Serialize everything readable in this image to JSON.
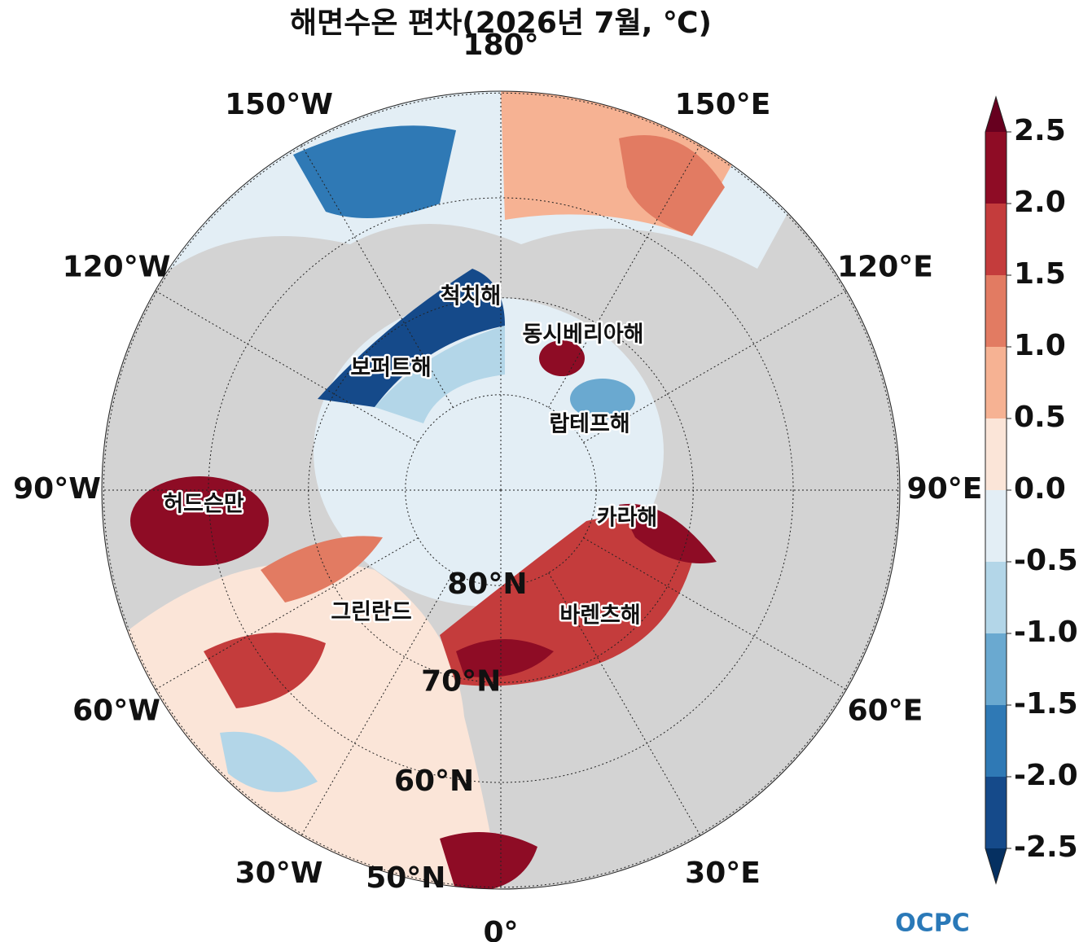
{
  "title": "해면수온 편차(2026년 7월, ℃)",
  "map": {
    "projection": "north-polar-stereographic",
    "lon_labels": [
      {
        "value": 180,
        "label": "180°"
      },
      {
        "value": -150,
        "label": "150°W"
      },
      {
        "value": 150,
        "label": "150°E"
      },
      {
        "value": -120,
        "label": "120°W"
      },
      {
        "value": 120,
        "label": "120°E"
      },
      {
        "value": -90,
        "label": "90°W"
      },
      {
        "value": 90,
        "label": "90°E"
      },
      {
        "value": -60,
        "label": "60°W"
      },
      {
        "value": 60,
        "label": "60°E"
      },
      {
        "value": -30,
        "label": "30°W"
      },
      {
        "value": 30,
        "label": "30°E"
      },
      {
        "value": 0,
        "label": "0°"
      }
    ],
    "lat_labels": [
      {
        "value": 80,
        "label": "80°N"
      },
      {
        "value": 70,
        "label": "70°N"
      },
      {
        "value": 60,
        "label": "60°N"
      },
      {
        "value": 50,
        "label": "50°N"
      }
    ],
    "sea_labels": [
      "척치해",
      "동시베리아해",
      "보퍼트해",
      "랍테프해",
      "허드슨만",
      "카라해",
      "그린란드",
      "바렌츠해"
    ]
  },
  "colorbar": {
    "ticks": [
      -2.5,
      {
        "value": -2,
        "label": "-2.0"
      },
      -1.5,
      {
        "value": -1,
        "label": "-1.0"
      },
      -0.5,
      {
        "value": 0,
        "label": "0.0"
      },
      0.5,
      {
        "value": 1,
        "label": "1.0"
      },
      1.5,
      {
        "value": 2,
        "label": "2.0"
      },
      2.5
    ],
    "colors": [
      "#154a8a",
      "#2f79b5",
      "#6aa9d0",
      "#b3d6e8",
      "#e3eef5",
      "#fbe5d8",
      "#f6b293",
      "#e27b62",
      "#c43c3c",
      "#8e0c25"
    ],
    "extend_colors": [
      "#053061",
      "#67001f"
    ]
  },
  "logo": "OCPC"
}
